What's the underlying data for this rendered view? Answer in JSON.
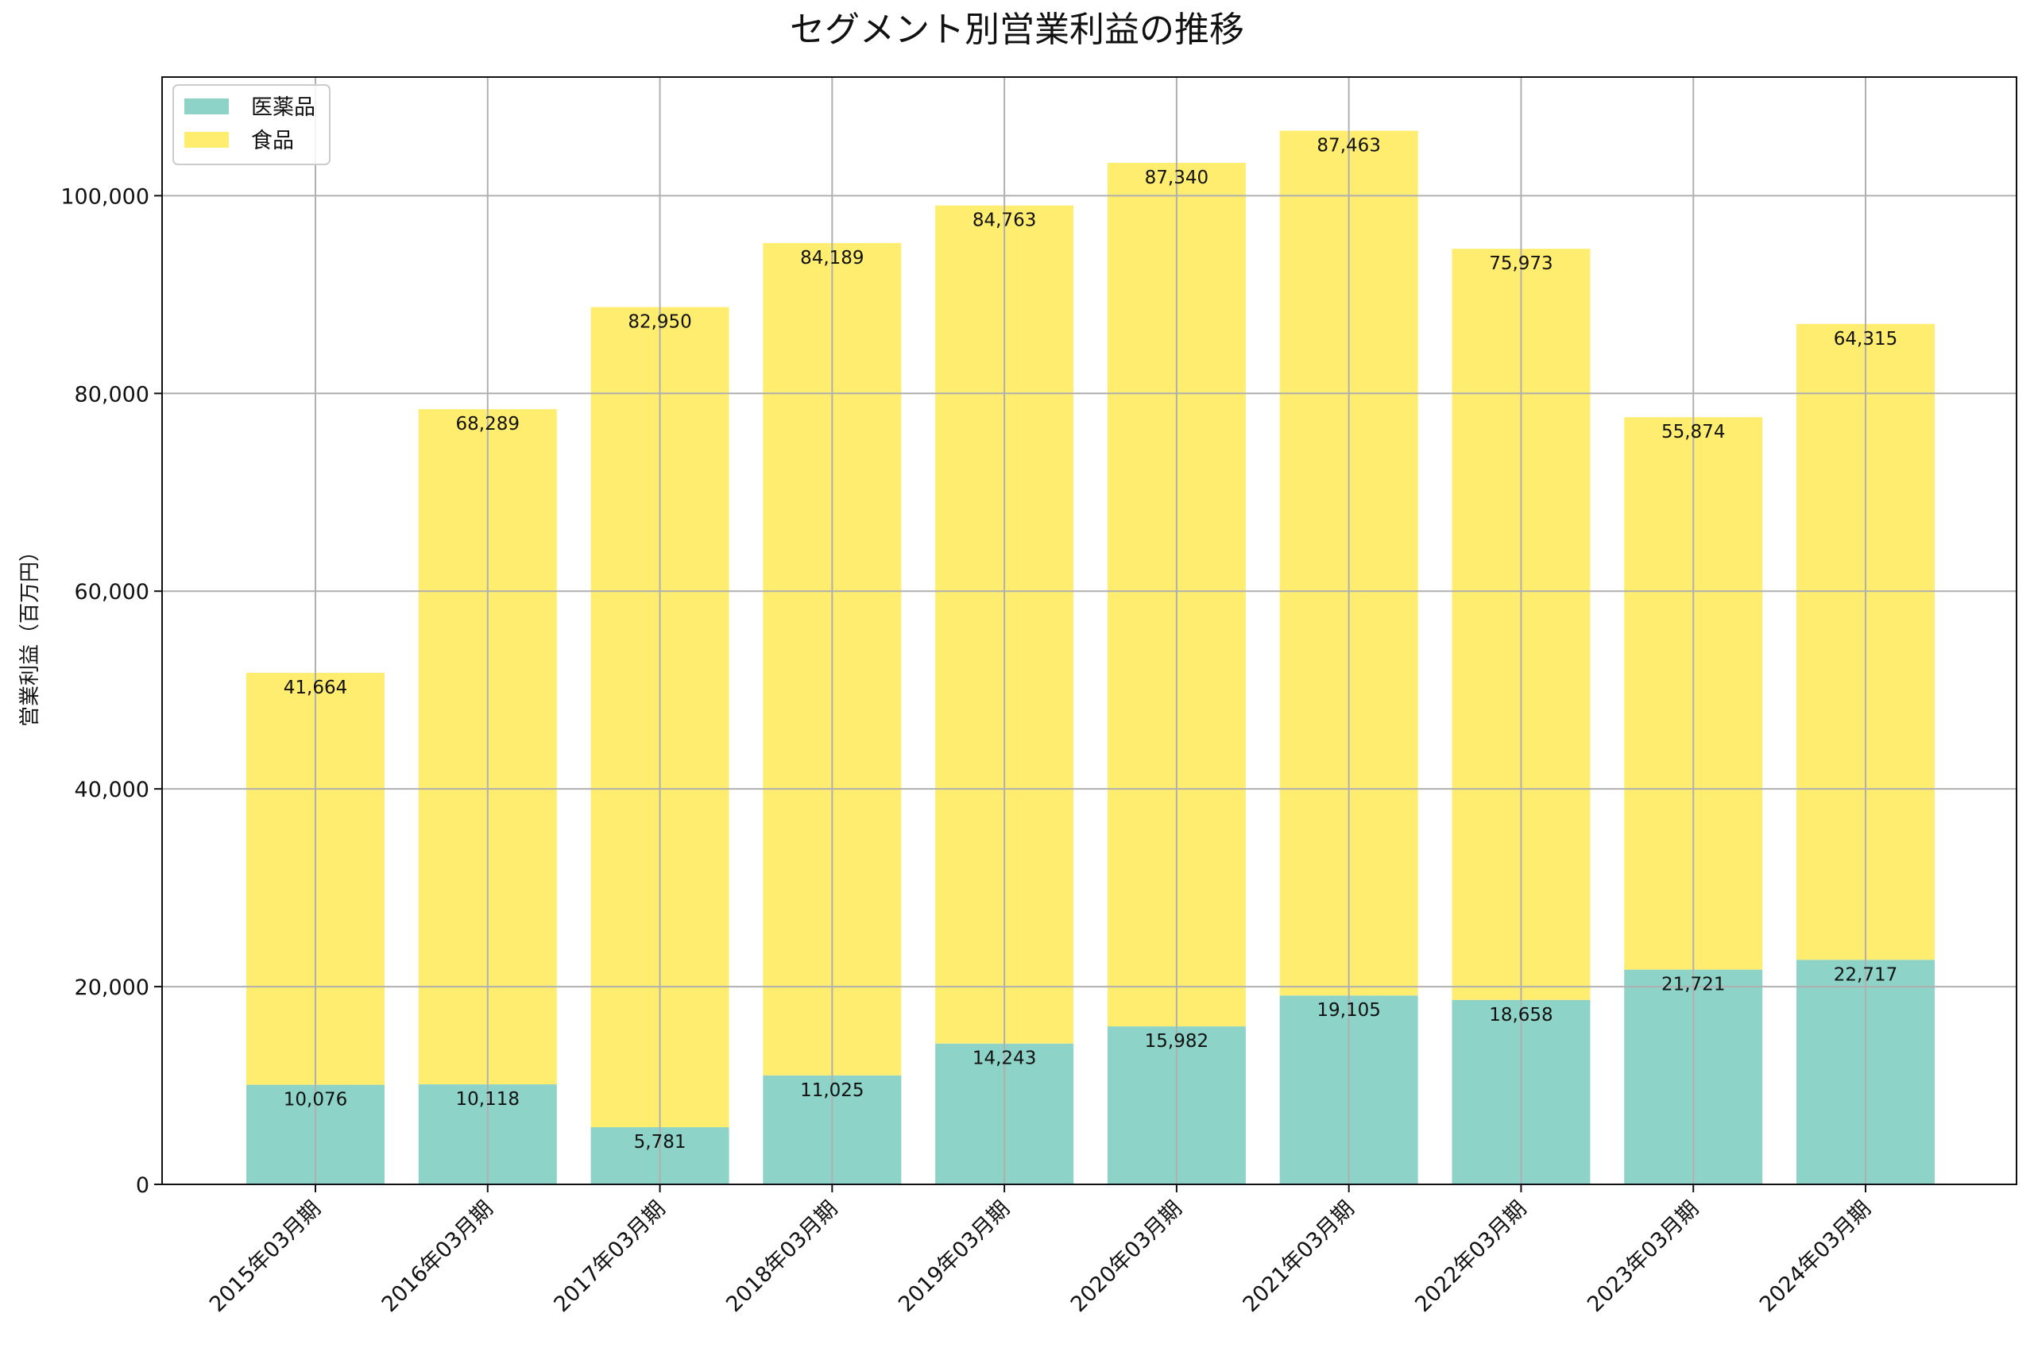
{
  "chart_data": {
    "type": "bar",
    "stacked": true,
    "title": "セグメント別営業利益の推移",
    "xlabel": "",
    "ylabel": "営業利益（百万円）",
    "ylim": [
      0,
      112000
    ],
    "yticks": [
      0,
      20000,
      40000,
      60000,
      80000,
      100000
    ],
    "ytick_labels": [
      "0",
      "20,000",
      "40,000",
      "60,000",
      "80,000",
      "100,000"
    ],
    "grid": true,
    "legend_position": "top-left",
    "categories": [
      "2015年03月期",
      "2016年03月期",
      "2017年03月期",
      "2018年03月期",
      "2019年03月期",
      "2020年03月期",
      "2021年03月期",
      "2022年03月期",
      "2023年03月期",
      "2024年03月期"
    ],
    "series": [
      {
        "name": "医薬品",
        "color": "#8dd3c7",
        "values": [
          10076,
          10118,
          5781,
          11025,
          14243,
          15982,
          19105,
          18658,
          21721,
          22717
        ],
        "labels": [
          "10,076",
          "10,118",
          "5,781",
          "11,025",
          "14,243",
          "15,982",
          "19,105",
          "18,658",
          "21,721",
          "22,717"
        ]
      },
      {
        "name": "食品",
        "color": "#ffed6f",
        "values": [
          41664,
          68289,
          82950,
          84189,
          84763,
          87340,
          87463,
          75973,
          55874,
          64315
        ],
        "labels": [
          "41,664",
          "68,289",
          "82,950",
          "84,189",
          "84,763",
          "87,340",
          "87,463",
          "75,973",
          "55,874",
          "64,315"
        ]
      }
    ]
  }
}
